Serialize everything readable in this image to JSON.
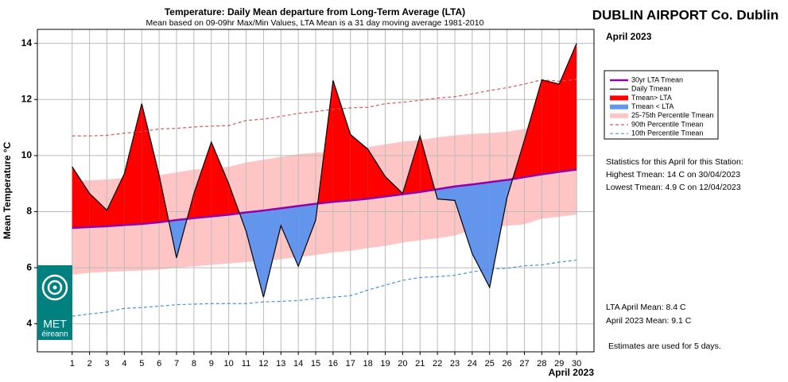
{
  "chart_data": {
    "type": "line",
    "title": "Temperature: Daily Mean departure from Long-Term Average (LTA)",
    "subtitle": "Mean based on 09-09hr Max/Min Values, LTA Mean is a 31 day moving average 1981-2010",
    "ylabel": "Mean Temperature °C",
    "xlabel": "April 2023",
    "x": [
      1,
      2,
      3,
      4,
      5,
      6,
      7,
      8,
      9,
      10,
      11,
      12,
      13,
      14,
      15,
      16,
      17,
      18,
      19,
      20,
      21,
      22,
      23,
      24,
      25,
      26,
      27,
      28,
      29,
      30
    ],
    "xlim": [
      -1,
      31
    ],
    "ylim": [
      3,
      14.5
    ],
    "yticks": [
      4,
      6,
      8,
      10,
      12,
      14
    ],
    "grid": true,
    "band": {
      "name": "25-75th Percentile Tmean",
      "color": "#ffc4c4",
      "low": [
        5.75,
        5.82,
        5.85,
        5.88,
        5.9,
        5.93,
        6.0,
        6.05,
        6.1,
        6.15,
        6.2,
        6.25,
        6.3,
        6.38,
        6.45,
        6.55,
        6.6,
        6.7,
        6.78,
        6.9,
        6.98,
        7.05,
        7.15,
        7.35,
        7.42,
        7.5,
        7.55,
        7.75,
        7.82,
        7.9
      ],
      "high": [
        9.1,
        9.12,
        9.15,
        9.2,
        9.25,
        9.3,
        9.4,
        9.5,
        9.55,
        9.6,
        9.75,
        9.85,
        9.95,
        10.05,
        10.1,
        10.15,
        10.2,
        10.3,
        10.4,
        10.5,
        10.55,
        10.65,
        10.72,
        10.77,
        10.8,
        10.85,
        10.95,
        11.1,
        11.2,
        11.27
      ]
    },
    "fills": [
      {
        "name": "Tmean> LTA",
        "color": "#ff0000"
      },
      {
        "name": "Tmean < LTA",
        "color": "#6495ed"
      }
    ],
    "series": [
      {
        "name": "30yr LTA Tmean",
        "color": "#9400a8",
        "width": 2.5,
        "dash": false,
        "values": [
          7.42,
          7.45,
          7.48,
          7.52,
          7.56,
          7.62,
          7.7,
          7.77,
          7.83,
          7.89,
          7.97,
          8.04,
          8.12,
          8.2,
          8.28,
          8.35,
          8.4,
          8.46,
          8.54,
          8.62,
          8.7,
          8.8,
          8.9,
          8.97,
          9.05,
          9.13,
          9.23,
          9.33,
          9.42,
          9.5
        ]
      },
      {
        "name": "Daily Tmean",
        "color": "#000000",
        "width": 1.2,
        "dash": false,
        "values": [
          9.6,
          8.65,
          8.05,
          9.35,
          11.85,
          9.3,
          6.35,
          8.65,
          10.48,
          9.0,
          7.3,
          4.95,
          7.5,
          6.05,
          7.7,
          12.68,
          10.75,
          10.23,
          9.25,
          8.65,
          10.7,
          8.45,
          8.4,
          6.5,
          5.3,
          8.5,
          10.55,
          12.7,
          12.55,
          14.0
        ]
      },
      {
        "name": "90th Percentile Tmean",
        "color": "#d65a5a",
        "width": 1.2,
        "dash": true,
        "values": [
          10.7,
          10.7,
          10.72,
          10.8,
          10.85,
          10.95,
          10.97,
          11.02,
          11.05,
          11.07,
          11.25,
          11.3,
          11.4,
          11.5,
          11.57,
          11.65,
          11.7,
          11.72,
          11.85,
          11.9,
          11.97,
          12.05,
          12.1,
          12.2,
          12.32,
          12.42,
          12.55,
          12.7,
          12.65,
          12.72
        ]
      },
      {
        "name": "10th Percentile Tmean",
        "color": "#4a90d9",
        "width": 1.2,
        "dash": true,
        "values": [
          4.27,
          4.35,
          4.42,
          4.55,
          4.58,
          4.63,
          4.68,
          4.7,
          4.72,
          4.72,
          4.72,
          4.78,
          4.8,
          4.83,
          4.9,
          4.95,
          5.0,
          5.2,
          5.38,
          5.55,
          5.65,
          5.68,
          5.73,
          5.85,
          5.95,
          5.98,
          6.07,
          6.1,
          6.2,
          6.27
        ]
      }
    ]
  },
  "station": {
    "name": "DUBLIN AIRPORT Co. Dublin",
    "month": "April 2023",
    "stats_heading": "Statistics for this April for this Station:",
    "highest": "Highest Tmean: 14 C on 30/04/2023",
    "lowest": "Lowest Tmean: 4.9 C on 12/04/2023",
    "lta_mean": "LTA April Mean: 8.4 C",
    "month_mean": "April 2023 Mean: 9.1 C",
    "note": "Estimates are used for 5 days."
  },
  "logo": {
    "line1": "MET",
    "line2": "éireann"
  }
}
